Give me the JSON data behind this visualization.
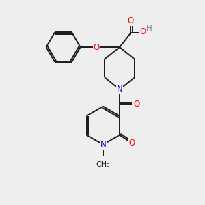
{
  "bg_color": "#eeeeee",
  "bond_color": "#1a1a1a",
  "atom_colors": {
    "O": "#ff0000",
    "N": "#0000cc",
    "H": "#808080",
    "C": "#1a1a1a"
  },
  "font_size": 8.5,
  "line_width": 1.4
}
